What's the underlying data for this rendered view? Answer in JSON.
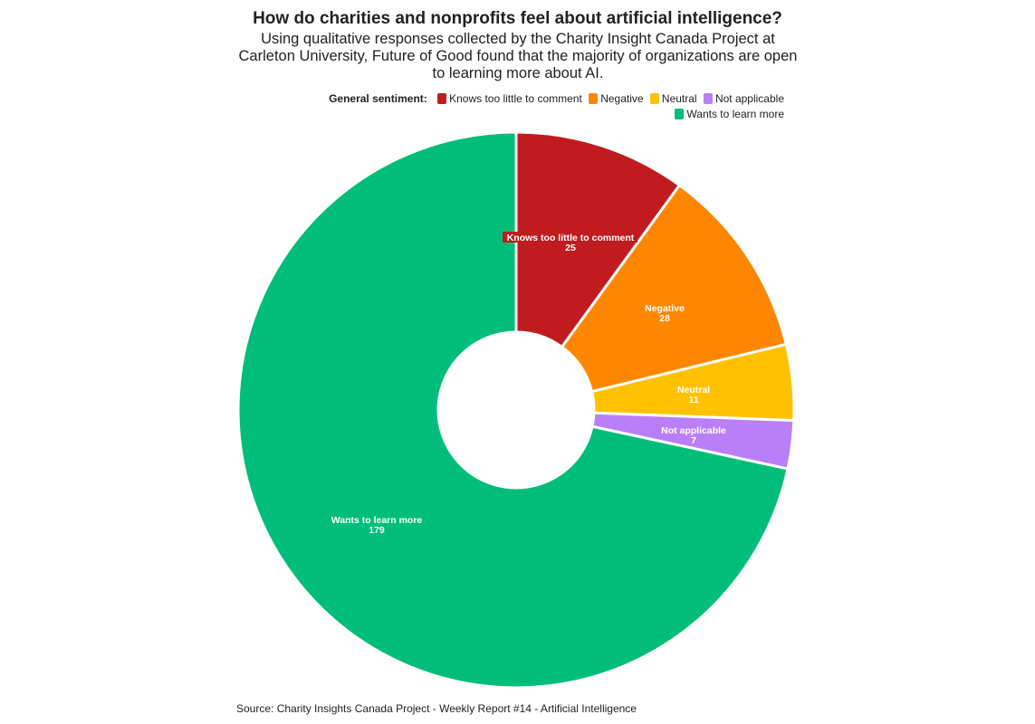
{
  "header": {
    "title": "How do charities and nonprofits feel about artificial intelligence?",
    "subtitle": "Using qualitative responses collected by the Charity Insight Canada Project at Carleton University, Future of Good found that the majority of organizations are open to learning more about AI."
  },
  "legend": {
    "title": "General sentiment:",
    "items": [
      {
        "label": "Knows too little to comment",
        "color": "#C01C20"
      },
      {
        "label": "Negative",
        "color": "#FF8700"
      },
      {
        "label": "Neutral",
        "color": "#FFC100"
      },
      {
        "label": "Not applicable",
        "color": "#B97FF8"
      },
      {
        "label": "Wants to learn more",
        "color": "#00BE7A"
      }
    ]
  },
  "footer": {
    "source": "Source: Charity Insights Canada Project - Weekly Report #14 - Artificial Intelligence"
  },
  "chart_data": {
    "type": "pie",
    "variant": "donut",
    "title": "How do charities and nonprofits feel about artificial intelligence?",
    "subtitle": "Using qualitative responses collected by the Charity Insight Canada Project at Carleton University, Future of Good found that the majority of organizations are open to learning more about AI.",
    "legend_title": "General sentiment:",
    "legend_position": "top-right",
    "categories": [
      "Knows too little to comment",
      "Negative",
      "Neutral",
      "Not applicable",
      "Wants to learn more"
    ],
    "values": [
      25,
      28,
      11,
      7,
      179
    ],
    "colors": [
      "#C01C20",
      "#FF8700",
      "#FFC100",
      "#B97FF8",
      "#00BE7A"
    ],
    "labels": [
      {
        "name": "Knows too little to comment",
        "value": "25"
      },
      {
        "name": "Negative",
        "value": "28"
      },
      {
        "name": "Neutral",
        "value": "11"
      },
      {
        "name": "Not applicable",
        "value": "7"
      },
      {
        "name": "Wants to learn more",
        "value": "179"
      }
    ],
    "start_angle_deg": 0,
    "direction": "clockwise",
    "source": "Source: Charity Insights Canada Project - Weekly Report #14 - Artificial Intelligence"
  }
}
